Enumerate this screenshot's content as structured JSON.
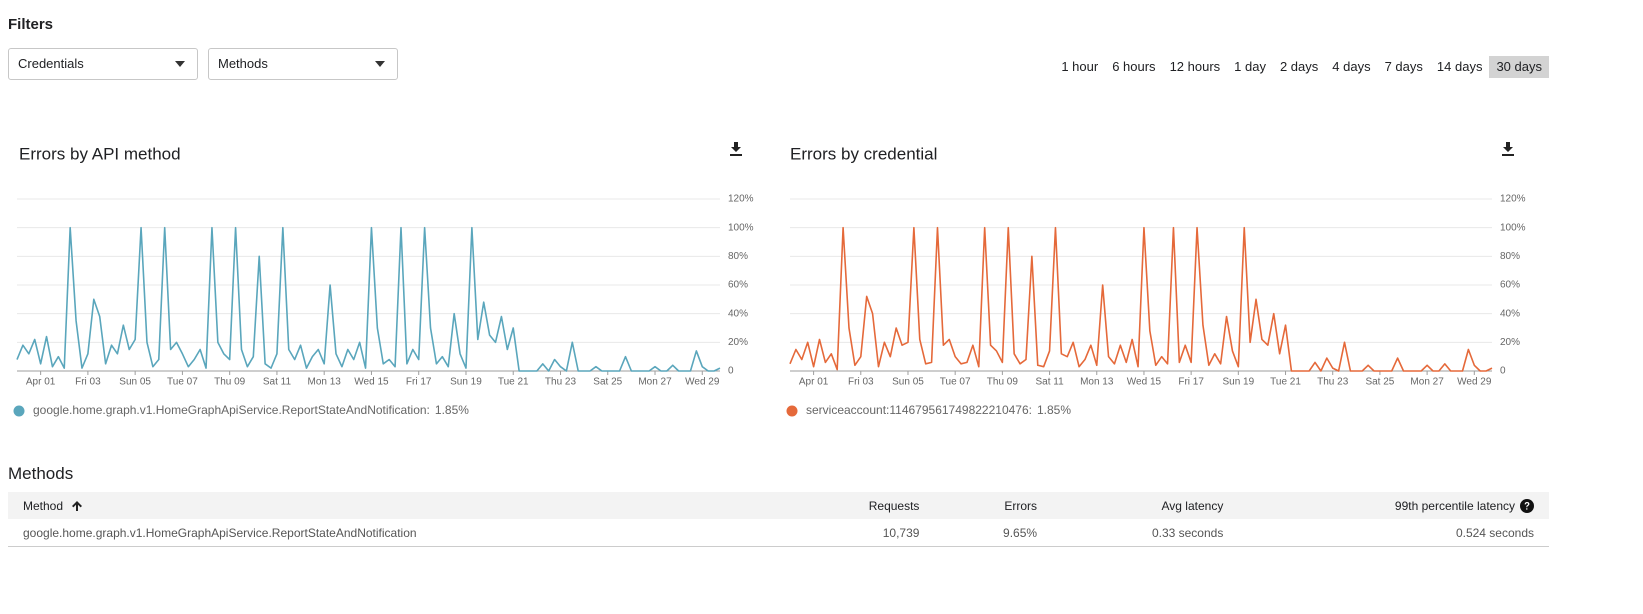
{
  "filters": {
    "title": "Filters",
    "dropdowns": [
      "Credentials",
      "Methods"
    ]
  },
  "time_ranges": {
    "options": [
      "1 hour",
      "6 hours",
      "12 hours",
      "1 day",
      "2 days",
      "4 days",
      "7 days",
      "14 days",
      "30 days"
    ],
    "selected_index": 8
  },
  "chart_data": [
    {
      "type": "line",
      "title": "Errors by API method",
      "categories": [
        null,
        null,
        null,
        null,
        "Apr 01",
        null,
        null,
        null,
        null,
        null,
        null,
        null,
        "Fri 03",
        null,
        null,
        null,
        null,
        null,
        null,
        null,
        "Sun 05",
        null,
        null,
        null,
        null,
        null,
        null,
        null,
        "Tue 07",
        null,
        null,
        null,
        null,
        null,
        null,
        null,
        "Thu 09",
        null,
        null,
        null,
        null,
        null,
        null,
        null,
        "Sat 11",
        null,
        null,
        null,
        null,
        null,
        null,
        null,
        "Mon 13",
        null,
        null,
        null,
        null,
        null,
        null,
        null,
        "Wed 15",
        null,
        null,
        null,
        null,
        null,
        null,
        null,
        "Fri 17",
        null,
        null,
        null,
        null,
        null,
        null,
        null,
        "Sun 19",
        null,
        null,
        null,
        null,
        null,
        null,
        null,
        "Tue 21",
        null,
        null,
        null,
        null,
        null,
        null,
        null,
        "Thu 23",
        null,
        null,
        null,
        null,
        null,
        null,
        null,
        "Sat 25",
        null,
        null,
        null,
        null,
        null,
        null,
        null,
        "Mon 27",
        null,
        null,
        null,
        null,
        null,
        null,
        null,
        "Wed 29",
        null,
        null,
        null
      ],
      "series": [
        {
          "name": "google.home.graph.v1.HomeGraphApiService.ReportStateAndNotification",
          "legend_value": "1.85%",
          "color": "#5aa6bc",
          "values": [
            8,
            18,
            12,
            22,
            5,
            24,
            3,
            10,
            2,
            100,
            35,
            2,
            12,
            50,
            38,
            5,
            18,
            12,
            32,
            15,
            22,
            100,
            20,
            3,
            8,
            100,
            15,
            20,
            12,
            3,
            8,
            15,
            2,
            100,
            20,
            12,
            8,
            100,
            15,
            3,
            10,
            80,
            5,
            2,
            12,
            100,
            15,
            8,
            18,
            2,
            10,
            15,
            5,
            60,
            12,
            3,
            15,
            8,
            20,
            2,
            100,
            30,
            5,
            8,
            3,
            100,
            5,
            15,
            8,
            100,
            30,
            5,
            10,
            3,
            40,
            12,
            2,
            100,
            22,
            48,
            25,
            20,
            38,
            15,
            30,
            0,
            0,
            0,
            0,
            5,
            0,
            8,
            3,
            0,
            20,
            0,
            0,
            0,
            3,
            0,
            0,
            0,
            0,
            10,
            0,
            0,
            0,
            0,
            3,
            0,
            0,
            4,
            0,
            0,
            0,
            14,
            3,
            0,
            0,
            2
          ]
        }
      ],
      "ylim": [
        0,
        120
      ],
      "yticks": [
        0,
        {
          "value": 20,
          "label": "20%"
        },
        {
          "value": 40,
          "label": "40%"
        },
        {
          "value": 60,
          "label": "60%"
        },
        {
          "value": 80,
          "label": "80%"
        },
        {
          "value": 100,
          "label": "100%"
        },
        {
          "value": 120,
          "label": "120%"
        }
      ],
      "grid": true
    },
    {
      "type": "line",
      "title": "Errors by credential",
      "categories": [
        null,
        null,
        null,
        null,
        "Apr 01",
        null,
        null,
        null,
        null,
        null,
        null,
        null,
        "Fri 03",
        null,
        null,
        null,
        null,
        null,
        null,
        null,
        "Sun 05",
        null,
        null,
        null,
        null,
        null,
        null,
        null,
        "Tue 07",
        null,
        null,
        null,
        null,
        null,
        null,
        null,
        "Thu 09",
        null,
        null,
        null,
        null,
        null,
        null,
        null,
        "Sat 11",
        null,
        null,
        null,
        null,
        null,
        null,
        null,
        "Mon 13",
        null,
        null,
        null,
        null,
        null,
        null,
        null,
        "Wed 15",
        null,
        null,
        null,
        null,
        null,
        null,
        null,
        "Fri 17",
        null,
        null,
        null,
        null,
        null,
        null,
        null,
        "Sun 19",
        null,
        null,
        null,
        null,
        null,
        null,
        null,
        "Tue 21",
        null,
        null,
        null,
        null,
        null,
        null,
        null,
        "Thu 23",
        null,
        null,
        null,
        null,
        null,
        null,
        null,
        "Sat 25",
        null,
        null,
        null,
        null,
        null,
        null,
        null,
        "Mon 27",
        null,
        null,
        null,
        null,
        null,
        null,
        null,
        "Wed 29",
        null,
        null,
        null
      ],
      "series": [
        {
          "name": "serviceaccount:114679561749822210476",
          "legend_value": "1.85%",
          "color": "#e5693a",
          "values": [
            5,
            15,
            8,
            20,
            3,
            22,
            6,
            12,
            1,
            100,
            30,
            4,
            10,
            52,
            40,
            3,
            20,
            10,
            30,
            18,
            20,
            100,
            22,
            5,
            6,
            100,
            18,
            22,
            10,
            5,
            6,
            18,
            3,
            100,
            18,
            14,
            6,
            100,
            12,
            5,
            8,
            80,
            4,
            3,
            14,
            100,
            12,
            10,
            20,
            3,
            8,
            18,
            4,
            60,
            10,
            5,
            18,
            6,
            22,
            3,
            100,
            28,
            4,
            10,
            5,
            100,
            6,
            18,
            6,
            100,
            32,
            4,
            12,
            5,
            38,
            14,
            3,
            100,
            20,
            50,
            22,
            18,
            40,
            12,
            32,
            0,
            0,
            0,
            0,
            6,
            0,
            9,
            2,
            0,
            20,
            0,
            0,
            0,
            4,
            0,
            0,
            0,
            0,
            9,
            0,
            0,
            0,
            0,
            4,
            0,
            0,
            5,
            0,
            0,
            0,
            15,
            4,
            0,
            0,
            2
          ]
        }
      ],
      "ylim": [
        0,
        120
      ],
      "yticks": [
        0,
        {
          "value": 20,
          "label": "20%"
        },
        {
          "value": 40,
          "label": "40%"
        },
        {
          "value": 60,
          "label": "60%"
        },
        {
          "value": 80,
          "label": "80%"
        },
        {
          "value": 100,
          "label": "100%"
        },
        {
          "value": 120,
          "label": "120%"
        }
      ],
      "grid": true
    }
  ],
  "methods_table": {
    "title": "Methods",
    "columns": [
      "Method",
      "Requests",
      "Errors",
      "Avg latency",
      "99th percentile latency"
    ],
    "rows": [
      [
        "google.home.graph.v1.HomeGraphApiService.ReportStateAndNotification",
        "10,739",
        "9.65%",
        "0.33 seconds",
        "0.524 seconds"
      ]
    ]
  }
}
